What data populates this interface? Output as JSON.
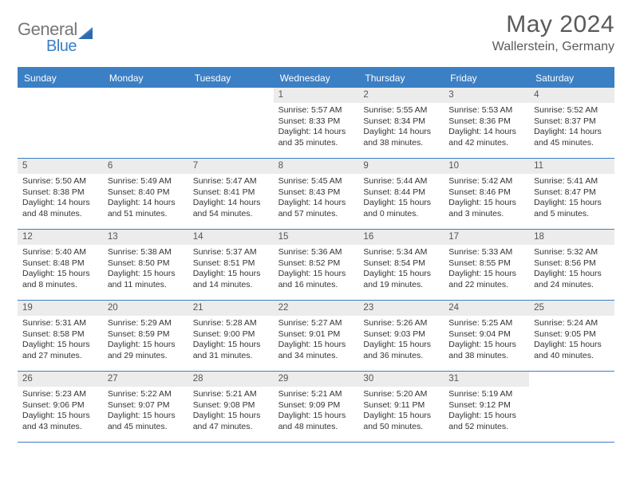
{
  "brand": {
    "part1": "General",
    "part2": "Blue"
  },
  "title": "May 2024",
  "location": "Wallerstein, Germany",
  "colors": {
    "accent": "#3b7fc4",
    "header_gray": "#777",
    "cell_num_bg": "#ececec"
  },
  "weekdays": [
    "Sunday",
    "Monday",
    "Tuesday",
    "Wednesday",
    "Thursday",
    "Friday",
    "Saturday"
  ],
  "weeks": [
    [
      null,
      null,
      null,
      {
        "n": "1",
        "sr": "5:57 AM",
        "ss": "8:33 PM",
        "dl": "14 hours and 35 minutes."
      },
      {
        "n": "2",
        "sr": "5:55 AM",
        "ss": "8:34 PM",
        "dl": "14 hours and 38 minutes."
      },
      {
        "n": "3",
        "sr": "5:53 AM",
        "ss": "8:36 PM",
        "dl": "14 hours and 42 minutes."
      },
      {
        "n": "4",
        "sr": "5:52 AM",
        "ss": "8:37 PM",
        "dl": "14 hours and 45 minutes."
      }
    ],
    [
      {
        "n": "5",
        "sr": "5:50 AM",
        "ss": "8:38 PM",
        "dl": "14 hours and 48 minutes."
      },
      {
        "n": "6",
        "sr": "5:49 AM",
        "ss": "8:40 PM",
        "dl": "14 hours and 51 minutes."
      },
      {
        "n": "7",
        "sr": "5:47 AM",
        "ss": "8:41 PM",
        "dl": "14 hours and 54 minutes."
      },
      {
        "n": "8",
        "sr": "5:45 AM",
        "ss": "8:43 PM",
        "dl": "14 hours and 57 minutes."
      },
      {
        "n": "9",
        "sr": "5:44 AM",
        "ss": "8:44 PM",
        "dl": "15 hours and 0 minutes."
      },
      {
        "n": "10",
        "sr": "5:42 AM",
        "ss": "8:46 PM",
        "dl": "15 hours and 3 minutes."
      },
      {
        "n": "11",
        "sr": "5:41 AM",
        "ss": "8:47 PM",
        "dl": "15 hours and 5 minutes."
      }
    ],
    [
      {
        "n": "12",
        "sr": "5:40 AM",
        "ss": "8:48 PM",
        "dl": "15 hours and 8 minutes."
      },
      {
        "n": "13",
        "sr": "5:38 AM",
        "ss": "8:50 PM",
        "dl": "15 hours and 11 minutes."
      },
      {
        "n": "14",
        "sr": "5:37 AM",
        "ss": "8:51 PM",
        "dl": "15 hours and 14 minutes."
      },
      {
        "n": "15",
        "sr": "5:36 AM",
        "ss": "8:52 PM",
        "dl": "15 hours and 16 minutes."
      },
      {
        "n": "16",
        "sr": "5:34 AM",
        "ss": "8:54 PM",
        "dl": "15 hours and 19 minutes."
      },
      {
        "n": "17",
        "sr": "5:33 AM",
        "ss": "8:55 PM",
        "dl": "15 hours and 22 minutes."
      },
      {
        "n": "18",
        "sr": "5:32 AM",
        "ss": "8:56 PM",
        "dl": "15 hours and 24 minutes."
      }
    ],
    [
      {
        "n": "19",
        "sr": "5:31 AM",
        "ss": "8:58 PM",
        "dl": "15 hours and 27 minutes."
      },
      {
        "n": "20",
        "sr": "5:29 AM",
        "ss": "8:59 PM",
        "dl": "15 hours and 29 minutes."
      },
      {
        "n": "21",
        "sr": "5:28 AM",
        "ss": "9:00 PM",
        "dl": "15 hours and 31 minutes."
      },
      {
        "n": "22",
        "sr": "5:27 AM",
        "ss": "9:01 PM",
        "dl": "15 hours and 34 minutes."
      },
      {
        "n": "23",
        "sr": "5:26 AM",
        "ss": "9:03 PM",
        "dl": "15 hours and 36 minutes."
      },
      {
        "n": "24",
        "sr": "5:25 AM",
        "ss": "9:04 PM",
        "dl": "15 hours and 38 minutes."
      },
      {
        "n": "25",
        "sr": "5:24 AM",
        "ss": "9:05 PM",
        "dl": "15 hours and 40 minutes."
      }
    ],
    [
      {
        "n": "26",
        "sr": "5:23 AM",
        "ss": "9:06 PM",
        "dl": "15 hours and 43 minutes."
      },
      {
        "n": "27",
        "sr": "5:22 AM",
        "ss": "9:07 PM",
        "dl": "15 hours and 45 minutes."
      },
      {
        "n": "28",
        "sr": "5:21 AM",
        "ss": "9:08 PM",
        "dl": "15 hours and 47 minutes."
      },
      {
        "n": "29",
        "sr": "5:21 AM",
        "ss": "9:09 PM",
        "dl": "15 hours and 48 minutes."
      },
      {
        "n": "30",
        "sr": "5:20 AM",
        "ss": "9:11 PM",
        "dl": "15 hours and 50 minutes."
      },
      {
        "n": "31",
        "sr": "5:19 AM",
        "ss": "9:12 PM",
        "dl": "15 hours and 52 minutes."
      },
      null
    ]
  ],
  "labels": {
    "sunrise": "Sunrise:",
    "sunset": "Sunset:",
    "daylight": "Daylight:"
  }
}
